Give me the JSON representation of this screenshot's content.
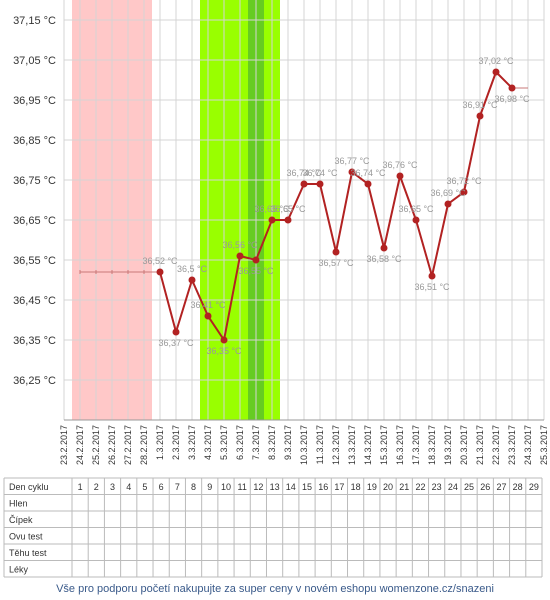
{
  "chart_data": {
    "type": "line",
    "unit_suffix": " °C",
    "y_ticks": [
      "37,15 °C",
      "37,05 °C",
      "36,95 °C",
      "36,85 °C",
      "36,75 °C",
      "36,65 °C",
      "36,55 °C",
      "36,45 °C",
      "36,35 °C",
      "36,25 °C"
    ],
    "y_tick_values": [
      37.15,
      37.05,
      36.95,
      36.85,
      36.75,
      36.65,
      36.55,
      36.45,
      36.35,
      36.25
    ],
    "ylim": [
      36.15,
      37.2
    ],
    "dates": [
      "23.2.2017",
      "24.2.2017",
      "25.2.2017",
      "26.2.2017",
      "27.2.2017",
      "28.2.2017",
      "1.3.2017",
      "2.3.2017",
      "3.3.2017",
      "4.3.2017",
      "5.3.2017",
      "6.3.2017",
      "7.3.2017",
      "8.3.2017",
      "9.3.2017",
      "10.3.2017",
      "11.3.2017",
      "12.3.2017",
      "13.3.2017",
      "14.3.2017",
      "15.3.2017",
      "16.3.2017",
      "17.3.2017",
      "18.3.2017",
      "19.3.2017",
      "20.3.2017",
      "21.3.2017",
      "22.3.2017",
      "23.3.2017",
      "24.3.2017",
      "25.3.2017"
    ],
    "series": [
      {
        "values": [
          null,
          null,
          null,
          null,
          null,
          null,
          36.52,
          36.37,
          36.5,
          36.41,
          36.35,
          36.56,
          36.55,
          36.65,
          36.65,
          36.74,
          36.74,
          36.57,
          36.77,
          36.74,
          36.58,
          36.76,
          36.65,
          36.51,
          36.69,
          36.72,
          36.91,
          37.02,
          36.98,
          null,
          null
        ],
        "labels": [
          "",
          "",
          "",
          "",
          "",
          "",
          "36,52 °C",
          "36,37 °C",
          "36,5 °C",
          "36,41 °C",
          "36,35 °C",
          "36,56 °C",
          "36,55 °C",
          "36,65 °C",
          "36,65 °C",
          "36,74 °C",
          "36,74 °C",
          "36,57 °C",
          "36,77 °C",
          "36,74 °C",
          "36,58 °C",
          "36,76 °C",
          "36,65 °C",
          "36,51 °C",
          "36,69 °C",
          "36,72 °C",
          "36,91 °C",
          "37,02 °C",
          "36,98 °C",
          "",
          ""
        ]
      }
    ],
    "baseline_before": 36.52,
    "baseline_after": 36.98,
    "bands": [
      {
        "from_index": 0.5,
        "to_index": 5.5,
        "color": "#ffc8c8"
      },
      {
        "from_index": 8.5,
        "to_index": 13.5,
        "color": "#99ff00"
      },
      {
        "from_index": 11.5,
        "to_index": 12.5,
        "color": "#66cc22"
      }
    ],
    "line_color": "#b22222",
    "grid": true
  },
  "table": {
    "rows": [
      "Den cyklu",
      "Hlen",
      "Čípek",
      "Ovu test",
      "Těhu test",
      "Léky"
    ],
    "days": [
      "1",
      "2",
      "3",
      "4",
      "5",
      "6",
      "7",
      "8",
      "9",
      "10",
      "11",
      "12",
      "13",
      "14",
      "15",
      "16",
      "17",
      "18",
      "19",
      "20",
      "21",
      "22",
      "23",
      "24",
      "25",
      "26",
      "27",
      "28",
      "29"
    ]
  },
  "footer": "Vše pro podporu početí nakupujte za super ceny v novém eshopu womenzone.cz/snazeni"
}
